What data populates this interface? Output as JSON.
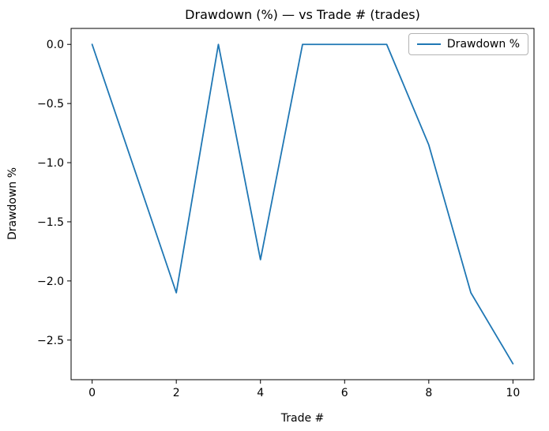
{
  "chart_data": {
    "type": "line",
    "title": "Drawdown (%) — vs Trade # (trades)",
    "xlabel": "Trade #",
    "ylabel": "Drawdown %",
    "series": [
      {
        "name": "Drawdown %",
        "x": [
          0,
          1,
          2,
          3,
          4,
          5,
          6,
          7,
          8,
          9,
          10
        ],
        "values": [
          0.0,
          -1.05,
          -2.1,
          0.0,
          -1.82,
          0.0,
          0.0,
          0.0,
          -0.85,
          -2.1,
          -2.7
        ],
        "color": "#1f77b4"
      }
    ],
    "xlim": [
      -0.5,
      10.5
    ],
    "ylim": [
      -2.835,
      0.135
    ],
    "xticks": [
      0,
      2,
      4,
      6,
      8,
      10
    ],
    "yticks": [
      0.0,
      -0.5,
      -1.0,
      -1.5,
      -2.0,
      -2.5
    ],
    "grid": false,
    "legend_position": "upper right",
    "legend_label": "Drawdown %"
  }
}
